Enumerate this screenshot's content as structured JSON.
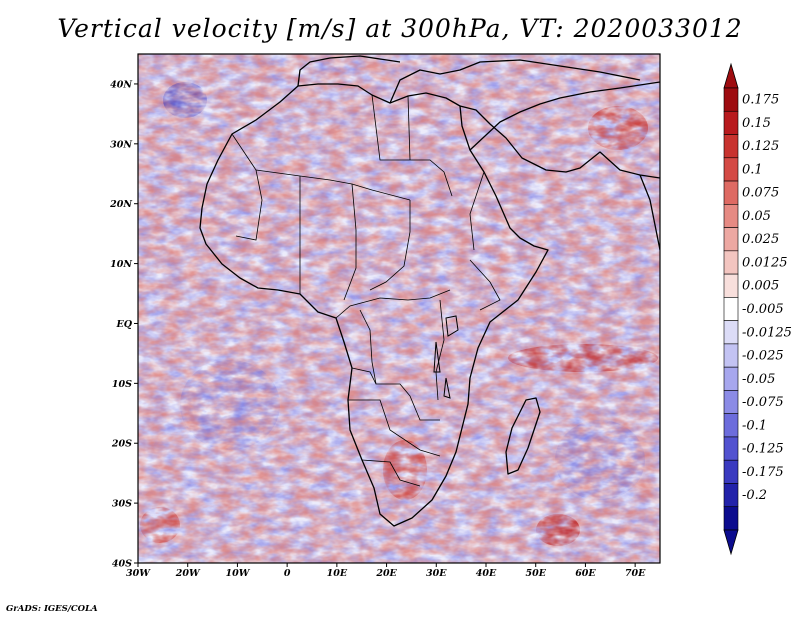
{
  "title": "Vertical velocity [m/s] at 300hPa, VT: 2020033012",
  "credit": "GrADS: IGES/COLA",
  "map": {
    "variable": "Vertical velocity",
    "units": "m/s",
    "level": "300hPa",
    "valid_time": "2020033012",
    "lon_range": [
      -30,
      75
    ],
    "lat_range": [
      -40,
      45
    ],
    "x_tick_labels": [
      "30W",
      "20W",
      "10W",
      "0",
      "10E",
      "20E",
      "30E",
      "40E",
      "50E",
      "60E",
      "70E"
    ],
    "x_tick_values": [
      -30,
      -20,
      -10,
      0,
      10,
      20,
      30,
      40,
      50,
      60,
      70
    ],
    "y_tick_labels": [
      "40N",
      "30N",
      "20N",
      "10N",
      "EQ",
      "10S",
      "20S",
      "30S",
      "40S"
    ],
    "y_tick_values": [
      40,
      30,
      20,
      10,
      0,
      -10,
      -20,
      -30,
      -40
    ]
  },
  "colorbar": {
    "levels": [
      "0.175",
      "0.15",
      "0.125",
      "0.1",
      "0.075",
      "0.05",
      "0.025",
      "0.0125",
      "0.005",
      "-0.005",
      "-0.0125",
      "-0.025",
      "-0.05",
      "-0.075",
      "-0.1",
      "-0.125",
      "-0.175",
      "-0.2"
    ],
    "colors": [
      "#9e0c10",
      "#b81a1e",
      "#c8332f",
      "#d44a45",
      "#de6a63",
      "#e68a83",
      "#eda8a2",
      "#f3c5c0",
      "#f8dfdc",
      "#ffffff",
      "#dcdcf7",
      "#c3c3f3",
      "#a7a7ee",
      "#8b8be6",
      "#6c6cdc",
      "#5252d0",
      "#3a3ac0",
      "#2222aa",
      "#0c0c8e"
    ],
    "top_arrow_color": "#9e0c10",
    "bottom_arrow_color": "#0c0c8e"
  }
}
